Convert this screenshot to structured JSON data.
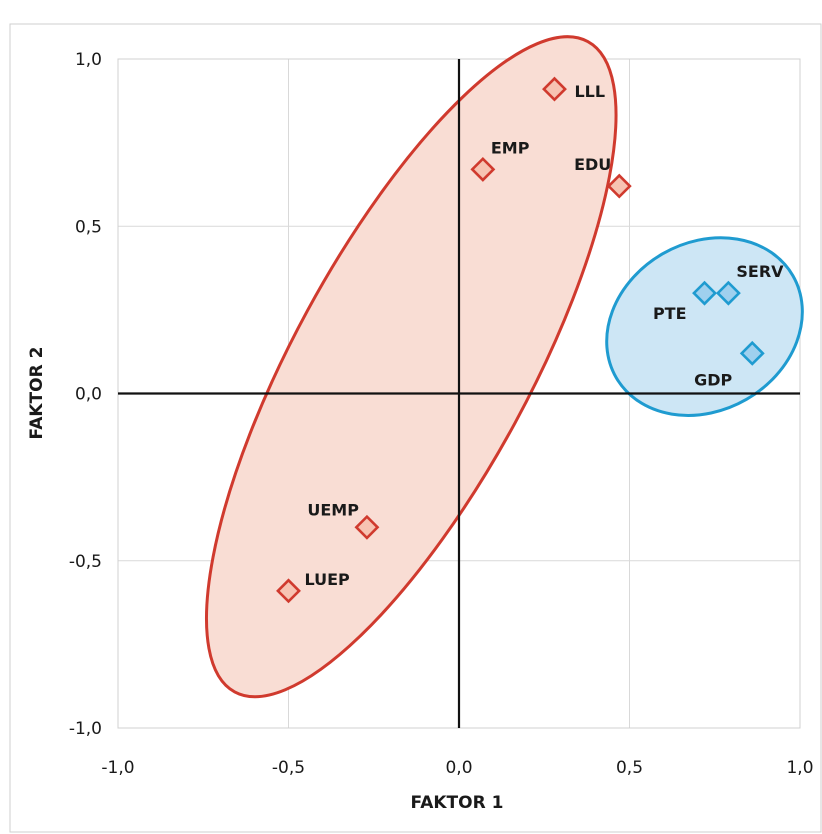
{
  "chart_data": {
    "type": "scatter",
    "title": "",
    "xlabel": "FAKTOR 1",
    "ylabel": "FAKTOR 2",
    "xlim": [
      -1.0,
      1.0
    ],
    "ylim": [
      -1.0,
      1.0
    ],
    "x_ticks": [
      "-1,0",
      "-0,5",
      "0,0",
      "0,5",
      "1,0"
    ],
    "y_ticks": [
      "1,0",
      "0,5",
      "0,0",
      "-0,5",
      "-1,0"
    ],
    "grid": true,
    "groups": [
      {
        "color": "#d03a2e",
        "fill": "#f9ddd4",
        "marker_fill": "#f7c3b2"
      },
      {
        "color": "#1f9bd0",
        "fill": "#cde6f5",
        "marker_fill": "#9fd0ee"
      }
    ],
    "points": [
      {
        "label": "LLL",
        "x": 0.28,
        "y": 0.91,
        "group": 0
      },
      {
        "label": "EMP",
        "x": 0.07,
        "y": 0.67,
        "group": 0
      },
      {
        "label": "EDU",
        "x": 0.47,
        "y": 0.62,
        "group": 0
      },
      {
        "label": "UEMP",
        "x": -0.27,
        "y": -0.4,
        "group": 0
      },
      {
        "label": "LUEP",
        "x": -0.5,
        "y": -0.59,
        "group": 0
      },
      {
        "label": "SERV",
        "x": 0.79,
        "y": 0.3,
        "group": 1
      },
      {
        "label": "PTE",
        "x": 0.72,
        "y": 0.3,
        "group": 1
      },
      {
        "label": "GDP",
        "x": 0.86,
        "y": 0.12,
        "group": 1
      }
    ]
  }
}
